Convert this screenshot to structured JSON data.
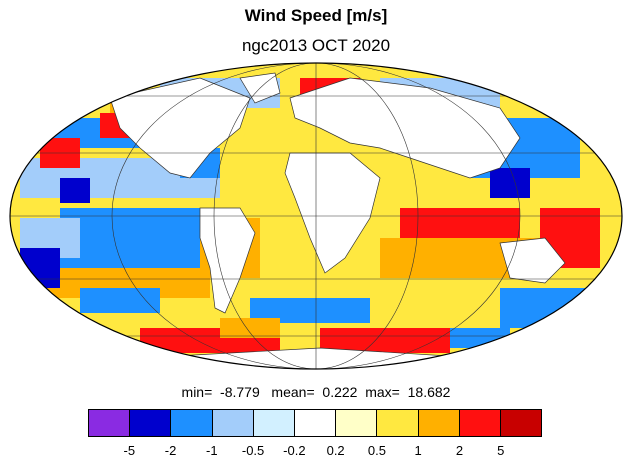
{
  "title": "Wind Speed [m/s]",
  "subtitle": "ngc2013 OCT 2020",
  "stats": {
    "min_label": "min=",
    "min_value": "-8.779",
    "mean_label": "mean=",
    "mean_value": "0.222",
    "max_label": "max=",
    "max_value": "18.682"
  },
  "colorbar": {
    "colors": [
      "#8a2be2",
      "#0000cd",
      "#1e90ff",
      "#a3cdfa",
      "#d2f0ff",
      "#ffffff",
      "#ffffc8",
      "#ffe840",
      "#ffb000",
      "#ff1010",
      "#c80000"
    ],
    "tick_labels": [
      "-5",
      "-2",
      "-1",
      "-0.5",
      "-0.2",
      "0.2",
      "0.5",
      "1",
      "2",
      "5"
    ]
  },
  "colors": {
    "ocean_positive": "#ffb000",
    "ocean_negative": "#1e90ff",
    "grid": "#333333"
  }
}
